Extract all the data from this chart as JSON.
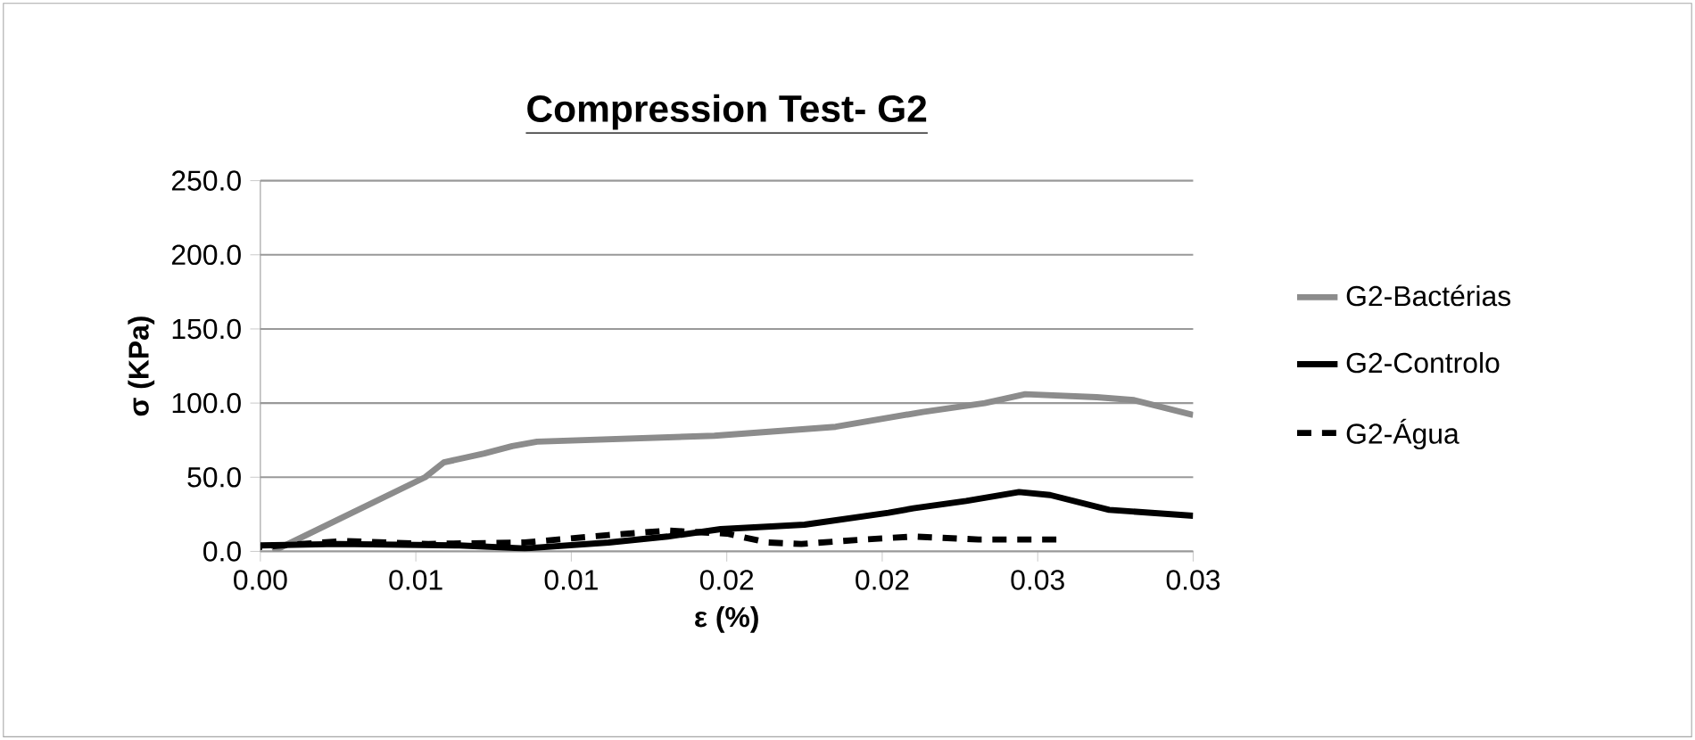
{
  "chart_data": {
    "type": "line",
    "title": "Compression Test- G2",
    "xlabel": "ε (%)",
    "ylabel": "σ (KPa)",
    "xlim": [
      0,
      0.03
    ],
    "ylim": [
      0,
      250
    ],
    "xticks": [
      {
        "value": 0,
        "label": "0.00"
      },
      {
        "value": 0.005,
        "label": "0.01"
      },
      {
        "value": 0.01,
        "label": "0.01"
      },
      {
        "value": 0.015,
        "label": "0.02"
      },
      {
        "value": 0.02,
        "label": "0.02"
      },
      {
        "value": 0.025,
        "label": "0.03"
      },
      {
        "value": 0.03,
        "label": "0.03"
      }
    ],
    "yticks": [
      {
        "value": 0,
        "label": "0.0"
      },
      {
        "value": 50,
        "label": "50.0"
      },
      {
        "value": 100,
        "label": "100.0"
      },
      {
        "value": 150,
        "label": "150.0"
      },
      {
        "value": 200,
        "label": "200.0"
      },
      {
        "value": 250,
        "label": "250.0"
      }
    ],
    "grid": "y",
    "legend": "right",
    "marker": "none",
    "series": [
      {
        "name": "G2-Bactérias",
        "color": "#8c8c8c",
        "line_style": "solid",
        "x": [
          0.0004,
          0.0053,
          0.0059,
          0.0072,
          0.0081,
          0.0089,
          0.0146,
          0.0185,
          0.0213,
          0.0233,
          0.0246,
          0.0269,
          0.0281,
          0.03
        ],
        "values": [
          0,
          50,
          60,
          66,
          71,
          74,
          78,
          84,
          94,
          100,
          106,
          104,
          102,
          92
        ]
      },
      {
        "name": "G2-Controlo",
        "color": "#000000",
        "line_style": "solid",
        "x": [
          0,
          0.0025,
          0.0064,
          0.0085,
          0.0112,
          0.0131,
          0.0148,
          0.0175,
          0.0202,
          0.021,
          0.0227,
          0.0244,
          0.0254,
          0.0273,
          0.03
        ],
        "values": [
          4,
          5,
          4,
          2,
          6,
          10,
          15,
          18,
          26,
          29,
          34,
          40,
          38,
          28,
          24
        ]
      },
      {
        "name": "G2-Água",
        "color": "#000000",
        "line_style": "dashed",
        "x": [
          0,
          0.0027,
          0.0054,
          0.0085,
          0.0112,
          0.0131,
          0.015,
          0.0163,
          0.0174,
          0.0194,
          0.021,
          0.0231,
          0.0256
        ],
        "values": [
          3,
          7,
          5,
          6,
          11,
          14,
          12,
          6,
          5,
          8,
          10,
          8,
          8
        ]
      }
    ]
  }
}
